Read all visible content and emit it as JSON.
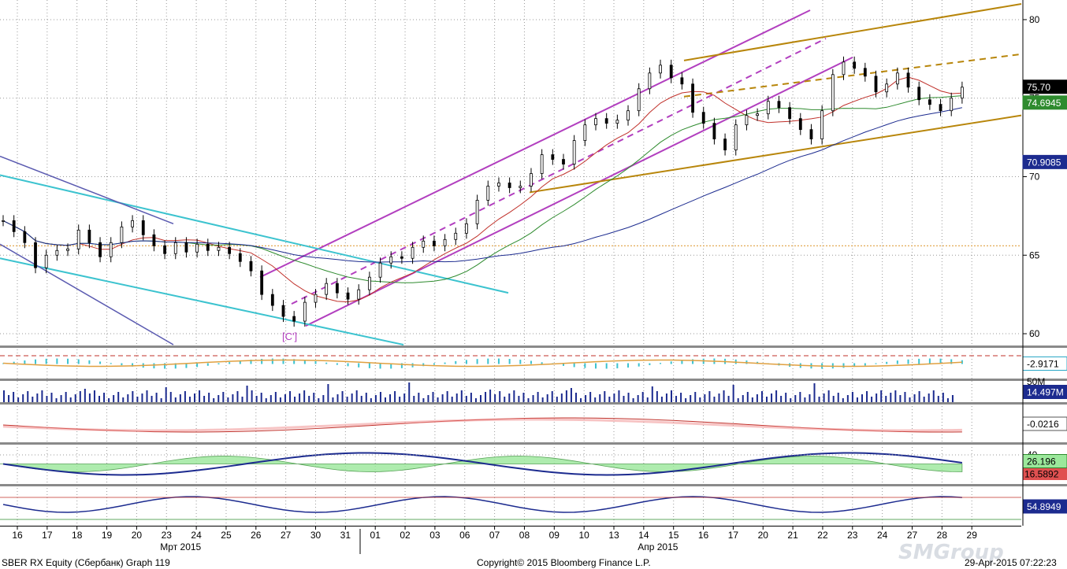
{
  "chart_data": {
    "type": "line",
    "ticker_title": "SBER RX Equity (Сбербанк) Graph 119",
    "copyright": "Copyright© 2015 Bloomberg Finance L.P.",
    "timestamp": "29-Apr-2015 07:22:23",
    "watermark": "SMGroup",
    "x_dates": [
      "16",
      "17",
      "18",
      "19",
      "20",
      "23",
      "24",
      "25",
      "26",
      "27",
      "30",
      "31",
      "01",
      "02",
      "03",
      "06",
      "07",
      "08",
      "09",
      "10",
      "13",
      "14",
      "15",
      "16",
      "17",
      "20",
      "21",
      "22",
      "23",
      "24",
      "27",
      "28",
      "29"
    ],
    "months": [
      {
        "label": "Мрт 2015",
        "at_index": 5
      },
      {
        "label": "Апр 2015",
        "at_index": 21
      }
    ],
    "price_axis": {
      "ticks": [
        60,
        65,
        70,
        75,
        80
      ],
      "ylim": [
        59.3,
        81.0
      ],
      "ref_level": 65.6
    },
    "price_close": [
      67.2,
      66.5,
      65.8,
      64.2,
      65.0,
      65.3,
      65.4,
      66.6,
      65.8,
      64.9,
      65.8,
      66.8,
      67.2,
      66.3,
      65.6,
      65.1,
      65.8,
      65.2,
      65.7,
      65.3,
      65.5,
      65.1,
      64.6,
      64.0,
      62.5,
      61.8,
      61.1,
      60.8,
      62.0,
      62.5,
      63.2,
      62.6,
      62.2,
      62.8,
      63.6,
      64.5,
      64.9,
      64.8,
      65.5,
      65.9,
      65.6,
      66.0,
      66.4,
      67.0,
      68.5,
      69.4,
      69.6,
      69.3,
      69.4,
      70.2,
      71.4,
      71.1,
      70.8,
      72.3,
      73.3,
      73.7,
      73.4,
      73.6,
      74.2,
      75.6,
      76.6,
      77.1,
      76.3,
      75.9,
      74.1,
      73.4,
      72.4,
      71.7,
      73.3,
      73.9,
      74.0,
      74.8,
      74.4,
      73.7,
      73.0,
      72.4,
      74.2,
      76.5,
      77.3,
      76.9,
      76.4,
      75.4,
      75.9,
      76.6,
      75.7,
      74.9,
      74.6,
      74.2,
      75.0,
      75.7
    ],
    "badges": [
      {
        "label": "75.70",
        "value": 75.7,
        "bg": "#000000",
        "fg": "#ffffff",
        "border": "#000000"
      },
      {
        "label": "74.6945",
        "value": 74.6945,
        "bg": "#2e8b2e",
        "fg": "#ffffff",
        "border": "#2e8b2e"
      },
      {
        "label": "70.9085",
        "value": 70.9085,
        "bg": "#1c2b8f",
        "fg": "#ffffff",
        "border": "#1c2b8f"
      }
    ],
    "panels": [
      {
        "name": "oscillator-panel",
        "badge": "-2.9171",
        "badge_bg": "#ffffff",
        "badge_fg": "#000000",
        "badge_border": "#2aa7c6"
      },
      {
        "name": "volume-panel",
        "tick": "50M",
        "badge": "14.497M",
        "badge_bg": "#1c2b8f",
        "badge_fg": "#ffffff",
        "badge_border": "#1c2b8f"
      },
      {
        "name": "macd-panel",
        "badge": "-0.0216",
        "badge_bg": "#ffffff",
        "badge_fg": "#000000",
        "badge_border": "#555555"
      },
      {
        "name": "dmi-panel",
        "tick": "40",
        "badge": "26.196",
        "badge_bg": "#9be89b",
        "badge_fg": "#000000",
        "badge_border": "#2e8b2e",
        "badge2": "16.5892",
        "badge2_bg": "#e05050",
        "badge2_fg": "#000000"
      },
      {
        "name": "rsi-panel",
        "badge": "54.8949",
        "badge_bg": "#1c2b8f",
        "badge_fg": "#ffffff",
        "badge_border": "#1c2b8f"
      }
    ],
    "annotation": "[C']",
    "colors": {
      "price": "#000000",
      "ma_fast": "#c0302a",
      "ma_mid": "#2e8b2e",
      "ma_slow": "#1c2b8f",
      "channel_magenta": "#b23fbf",
      "channel_gold": "#b8860b",
      "channel_cyan": "#3cc3cf",
      "ref_level": "#e0a040",
      "panel_separator": "#8a8a8a"
    }
  }
}
